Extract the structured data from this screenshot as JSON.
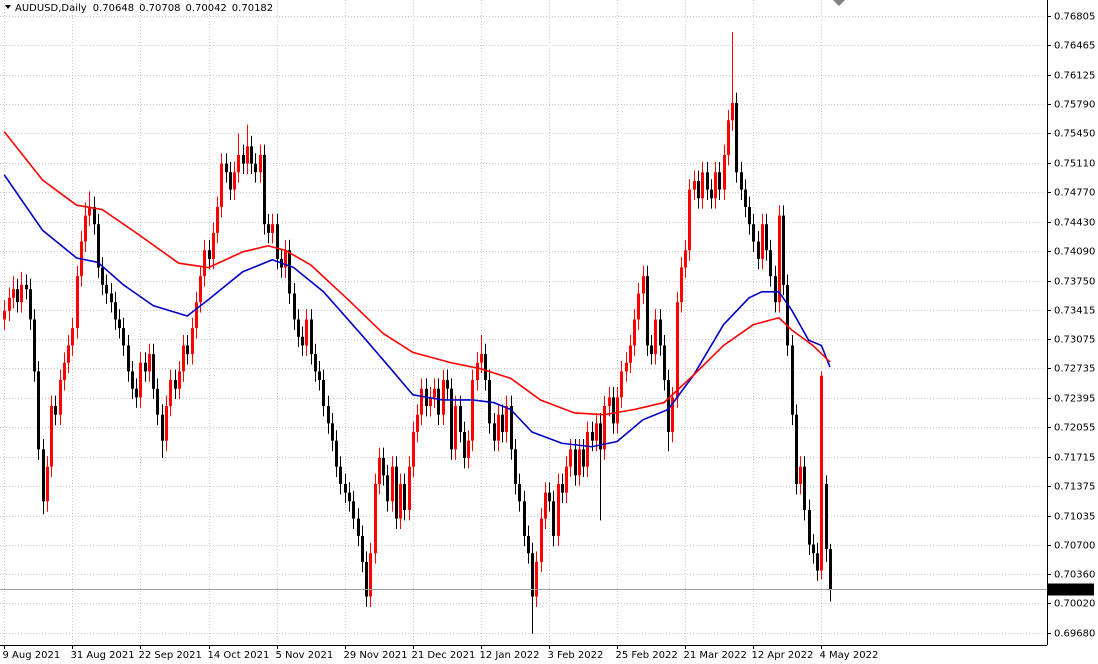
{
  "chart_data": {
    "type": "candlestick",
    "title": "AUDUSD,Daily",
    "up_color": "#ff0000",
    "down_color": "#000000",
    "grid": true,
    "xlim": [
      -1,
      245
    ],
    "ylim": [
      0.6954,
      0.7699
    ],
    "xticks": [
      {
        "value": 0,
        "label": "9 Aug 2021"
      },
      {
        "value": 16,
        "label": "31 Aug 2021"
      },
      {
        "value": 32,
        "label": "22 Sep 2021"
      },
      {
        "value": 48,
        "label": "14 Oct 2021"
      },
      {
        "value": 64,
        "label": "5 Nov 2021"
      },
      {
        "value": 80,
        "label": "29 Nov 2021"
      },
      {
        "value": 96,
        "label": "21 Dec 2021"
      },
      {
        "value": 112,
        "label": "12 Jan 2022"
      },
      {
        "value": 128,
        "label": "3 Feb 2022"
      },
      {
        "value": 144,
        "label": "25 Feb 2022"
      },
      {
        "value": 160,
        "label": "21 Mar 2022"
      },
      {
        "value": 176,
        "label": "12 Apr 2022"
      },
      {
        "value": 192,
        "label": "4 May 2022"
      }
    ],
    "yticks": [
      0.76805,
      0.76465,
      0.76125,
      {
        "value": 0.7579,
        "label": "0.75790"
      },
      {
        "value": 0.7545,
        "label": "0.75450"
      },
      {
        "value": 0.7511,
        "label": "0.75110"
      },
      {
        "value": 0.7477,
        "label": "0.74770"
      },
      {
        "value": 0.7443,
        "label": "0.74430"
      },
      {
        "value": 0.7409,
        "label": "0.74090"
      },
      {
        "value": 0.7375,
        "label": "0.73750"
      },
      0.73415,
      0.73075,
      0.72735,
      0.72395,
      0.72055,
      0.71715,
      0.71375,
      0.71035,
      {
        "value": 0.707,
        "label": "0.70700"
      },
      {
        "value": 0.7036,
        "label": "0.70360"
      },
      {
        "value": 0.7002,
        "label": "0.70020"
      },
      {
        "value": 0.6968,
        "label": "0.69680"
      }
    ],
    "candles": [
      [
        0.733,
        0.7352,
        0.7318,
        0.734
      ],
      [
        0.734,
        0.7367,
        0.7328,
        0.7355
      ],
      [
        0.7355,
        0.738,
        0.7343,
        0.7365
      ],
      [
        0.7365,
        0.7377,
        0.7338,
        0.735
      ],
      [
        0.735,
        0.7385,
        0.7338,
        0.737
      ],
      [
        0.737,
        0.7382,
        0.7353,
        0.7365
      ],
      [
        0.7365,
        0.7377,
        0.7318,
        0.733
      ],
      [
        0.733,
        0.7342,
        0.7258,
        0.727
      ],
      [
        0.727,
        0.7282,
        0.7168,
        0.718
      ],
      [
        0.718,
        0.7192,
        0.7105,
        0.712
      ],
      [
        0.712,
        0.7172,
        0.7108,
        0.716
      ],
      [
        0.716,
        0.7242,
        0.7148,
        0.723
      ],
      [
        0.723,
        0.7242,
        0.7208,
        0.722
      ],
      [
        0.722,
        0.7272,
        0.7208,
        0.726
      ],
      [
        0.726,
        0.7292,
        0.7248,
        0.728
      ],
      [
        0.728,
        0.7312,
        0.7268,
        0.73
      ],
      [
        0.73,
        0.7332,
        0.7288,
        0.732
      ],
      [
        0.732,
        0.7392,
        0.7308,
        0.738
      ],
      [
        0.738,
        0.7432,
        0.7368,
        0.742
      ],
      [
        0.742,
        0.7465,
        0.7408,
        0.745
      ],
      [
        0.745,
        0.7478,
        0.7438,
        0.746
      ],
      [
        0.746,
        0.7472,
        0.7428,
        0.744
      ],
      [
        0.744,
        0.7452,
        0.7378,
        0.739
      ],
      [
        0.739,
        0.7402,
        0.7358,
        0.737
      ],
      [
        0.737,
        0.7382,
        0.7348,
        0.736
      ],
      [
        0.736,
        0.7372,
        0.7338,
        0.735
      ],
      [
        0.735,
        0.7362,
        0.7318,
        0.733
      ],
      [
        0.733,
        0.7342,
        0.7308,
        0.732
      ],
      [
        0.732,
        0.7332,
        0.7288,
        0.73
      ],
      [
        0.73,
        0.7312,
        0.7258,
        0.727
      ],
      [
        0.727,
        0.7282,
        0.7238,
        0.725
      ],
      [
        0.725,
        0.7262,
        0.7228,
        0.724
      ],
      [
        0.724,
        0.7292,
        0.7228,
        0.728
      ],
      [
        0.728,
        0.7292,
        0.7258,
        0.727
      ],
      [
        0.727,
        0.7302,
        0.7258,
        0.729
      ],
      [
        0.729,
        0.7302,
        0.7238,
        0.725
      ],
      [
        0.725,
        0.7262,
        0.7208,
        0.722
      ],
      [
        0.722,
        0.7232,
        0.717,
        0.719
      ],
      [
        0.719,
        0.7242,
        0.7178,
        0.723
      ],
      [
        0.723,
        0.7272,
        0.7218,
        0.726
      ],
      [
        0.726,
        0.7272,
        0.7238,
        0.725
      ],
      [
        0.725,
        0.7282,
        0.7238,
        0.727
      ],
      [
        0.727,
        0.7312,
        0.7258,
        0.73
      ],
      [
        0.73,
        0.7312,
        0.7278,
        0.729
      ],
      [
        0.729,
        0.7332,
        0.7278,
        0.732
      ],
      [
        0.732,
        0.7362,
        0.7308,
        0.735
      ],
      [
        0.735,
        0.7392,
        0.7338,
        0.738
      ],
      [
        0.738,
        0.7422,
        0.7368,
        0.741
      ],
      [
        0.741,
        0.7422,
        0.7388,
        0.74
      ],
      [
        0.74,
        0.7442,
        0.7388,
        0.743
      ],
      [
        0.743,
        0.7472,
        0.7418,
        0.746
      ],
      [
        0.746,
        0.7522,
        0.7448,
        0.751
      ],
      [
        0.751,
        0.7522,
        0.7488,
        0.75
      ],
      [
        0.75,
        0.7512,
        0.7468,
        0.748
      ],
      [
        0.748,
        0.7512,
        0.7468,
        0.75
      ],
      [
        0.75,
        0.7545,
        0.7488,
        0.752
      ],
      [
        0.752,
        0.7532,
        0.7498,
        0.751
      ],
      [
        0.751,
        0.7555,
        0.7498,
        0.753
      ],
      [
        0.753,
        0.7542,
        0.7498,
        0.751
      ],
      [
        0.751,
        0.7522,
        0.7488,
        0.75
      ],
      [
        0.75,
        0.7532,
        0.7488,
        0.752
      ],
      [
        0.752,
        0.7532,
        0.7428,
        0.744
      ],
      [
        0.744,
        0.7452,
        0.7418,
        0.743
      ],
      [
        0.743,
        0.7452,
        0.7418,
        0.744
      ],
      [
        0.744,
        0.7452,
        0.7388,
        0.74
      ],
      [
        0.74,
        0.7412,
        0.7378,
        0.739
      ],
      [
        0.739,
        0.7422,
        0.7378,
        0.741
      ],
      [
        0.741,
        0.7422,
        0.7348,
        0.736
      ],
      [
        0.736,
        0.7372,
        0.7318,
        0.733
      ],
      [
        0.733,
        0.7342,
        0.7298,
        0.731
      ],
      [
        0.731,
        0.7322,
        0.7288,
        0.73
      ],
      [
        0.73,
        0.7342,
        0.7288,
        0.733
      ],
      [
        0.733,
        0.7342,
        0.7278,
        0.729
      ],
      [
        0.729,
        0.7302,
        0.7258,
        0.727
      ],
      [
        0.727,
        0.7282,
        0.7248,
        0.726
      ],
      [
        0.726,
        0.7272,
        0.7218,
        0.723
      ],
      [
        0.723,
        0.7242,
        0.7198,
        0.721
      ],
      [
        0.721,
        0.7222,
        0.7178,
        0.719
      ],
      [
        0.719,
        0.7202,
        0.7148,
        0.716
      ],
      [
        0.716,
        0.7172,
        0.7128,
        0.714
      ],
      [
        0.714,
        0.7152,
        0.7118,
        0.713
      ],
      [
        0.713,
        0.7142,
        0.7108,
        0.712
      ],
      [
        0.712,
        0.7132,
        0.7088,
        0.71
      ],
      [
        0.71,
        0.7112,
        0.7068,
        0.708
      ],
      [
        0.708,
        0.7092,
        0.7038,
        0.705
      ],
      [
        0.705,
        0.7062,
        0.6998,
        0.701
      ],
      [
        0.701,
        0.7072,
        0.6998,
        0.706
      ],
      [
        0.706,
        0.7152,
        0.7048,
        0.714
      ],
      [
        0.714,
        0.7182,
        0.7128,
        0.717
      ],
      [
        0.717,
        0.7182,
        0.7138,
        0.715
      ],
      [
        0.715,
        0.7162,
        0.7108,
        0.712
      ],
      [
        0.712,
        0.7172,
        0.7108,
        0.716
      ],
      [
        0.716,
        0.7172,
        0.7088,
        0.71
      ],
      [
        0.71,
        0.7152,
        0.7088,
        0.714
      ],
      [
        0.714,
        0.7152,
        0.7098,
        0.711
      ],
      [
        0.711,
        0.7172,
        0.7098,
        0.716
      ],
      [
        0.716,
        0.7212,
        0.7148,
        0.72
      ],
      [
        0.72,
        0.7232,
        0.7188,
        0.722
      ],
      [
        0.722,
        0.7262,
        0.7208,
        0.725
      ],
      [
        0.725,
        0.7262,
        0.7218,
        0.723
      ],
      [
        0.723,
        0.7252,
        0.7218,
        0.724
      ],
      [
        0.724,
        0.7262,
        0.7228,
        0.725
      ],
      [
        0.725,
        0.7262,
        0.7208,
        0.722
      ],
      [
        0.722,
        0.7272,
        0.7208,
        0.726
      ],
      [
        0.726,
        0.7272,
        0.7238,
        0.725
      ],
      [
        0.725,
        0.7262,
        0.7168,
        0.718
      ],
      [
        0.718,
        0.7242,
        0.7168,
        0.723
      ],
      [
        0.723,
        0.7242,
        0.7188,
        0.72
      ],
      [
        0.72,
        0.7212,
        0.7158,
        0.717
      ],
      [
        0.717,
        0.7202,
        0.7158,
        0.719
      ],
      [
        0.719,
        0.7272,
        0.7178,
        0.726
      ],
      [
        0.726,
        0.7292,
        0.7248,
        0.728
      ],
      [
        0.728,
        0.7312,
        0.7268,
        0.729
      ],
      [
        0.729,
        0.7302,
        0.7248,
        0.726
      ],
      [
        0.726,
        0.7272,
        0.7198,
        0.721
      ],
      [
        0.721,
        0.7222,
        0.7178,
        0.719
      ],
      [
        0.719,
        0.7232,
        0.7178,
        0.722
      ],
      [
        0.722,
        0.7232,
        0.7188,
        0.72
      ],
      [
        0.72,
        0.7242,
        0.7188,
        0.723
      ],
      [
        0.723,
        0.7242,
        0.7168,
        0.718
      ],
      [
        0.718,
        0.7192,
        0.7128,
        0.714
      ],
      [
        0.714,
        0.7152,
        0.7108,
        0.712
      ],
      [
        0.712,
        0.7132,
        0.7068,
        0.708
      ],
      [
        0.708,
        0.7092,
        0.7048,
        0.706
      ],
      [
        0.706,
        0.7072,
        0.6967,
        0.701
      ],
      [
        0.701,
        0.7062,
        0.6998,
        0.705
      ],
      [
        0.705,
        0.7112,
        0.7038,
        0.71
      ],
      [
        0.71,
        0.7142,
        0.7088,
        0.713
      ],
      [
        0.713,
        0.7142,
        0.7108,
        0.712
      ],
      [
        0.712,
        0.7132,
        0.7068,
        0.708
      ],
      [
        0.708,
        0.7152,
        0.7068,
        0.714
      ],
      [
        0.714,
        0.7152,
        0.7118,
        0.713
      ],
      [
        0.713,
        0.7172,
        0.7118,
        0.716
      ],
      [
        0.716,
        0.7192,
        0.7148,
        0.718
      ],
      [
        0.718,
        0.7192,
        0.7138,
        0.715
      ],
      [
        0.715,
        0.7192,
        0.7138,
        0.718
      ],
      [
        0.718,
        0.7192,
        0.7148,
        0.716
      ],
      [
        0.716,
        0.7212,
        0.7148,
        0.72
      ],
      [
        0.72,
        0.7212,
        0.7178,
        0.719
      ],
      [
        0.719,
        0.7222,
        0.7178,
        0.721
      ],
      [
        0.721,
        0.7222,
        0.7098,
        0.718
      ],
      [
        0.718,
        0.7242,
        0.7168,
        0.723
      ],
      [
        0.723,
        0.7252,
        0.7218,
        0.724
      ],
      [
        0.724,
        0.7252,
        0.7198,
        0.721
      ],
      [
        0.721,
        0.7252,
        0.7198,
        0.724
      ],
      [
        0.724,
        0.7282,
        0.7228,
        0.727
      ],
      [
        0.727,
        0.7292,
        0.7258,
        0.728
      ],
      [
        0.728,
        0.7312,
        0.7268,
        0.73
      ],
      [
        0.73,
        0.7342,
        0.7288,
        0.733
      ],
      [
        0.733,
        0.7372,
        0.7318,
        0.736
      ],
      [
        0.736,
        0.7392,
        0.7348,
        0.738
      ],
      [
        0.738,
        0.7392,
        0.7288,
        0.73
      ],
      [
        0.73,
        0.7312,
        0.7278,
        0.729
      ],
      [
        0.729,
        0.7342,
        0.7278,
        0.733
      ],
      [
        0.733,
        0.7342,
        0.7288,
        0.73
      ],
      [
        0.73,
        0.7312,
        0.7248,
        0.726
      ],
      [
        0.726,
        0.7272,
        0.7178,
        0.72
      ],
      [
        0.72,
        0.7252,
        0.7188,
        0.724
      ],
      [
        0.724,
        0.7362,
        0.7228,
        0.735
      ],
      [
        0.735,
        0.7402,
        0.7338,
        0.739
      ],
      [
        0.739,
        0.7422,
        0.7378,
        0.741
      ],
      [
        0.741,
        0.7492,
        0.7398,
        0.748
      ],
      [
        0.748,
        0.7502,
        0.7468,
        0.749
      ],
      [
        0.749,
        0.7502,
        0.7458,
        0.747
      ],
      [
        0.747,
        0.7512,
        0.7458,
        0.75
      ],
      [
        0.75,
        0.7512,
        0.7468,
        0.748
      ],
      [
        0.748,
        0.7492,
        0.7458,
        0.747
      ],
      [
        0.747,
        0.7512,
        0.7458,
        0.75
      ],
      [
        0.75,
        0.7512,
        0.7468,
        0.748
      ],
      [
        0.748,
        0.7532,
        0.7468,
        0.752
      ],
      [
        0.752,
        0.7572,
        0.7508,
        0.756
      ],
      [
        0.756,
        0.7662,
        0.7548,
        0.758
      ],
      [
        0.758,
        0.7592,
        0.7488,
        0.75
      ],
      [
        0.75,
        0.7512,
        0.7468,
        0.748
      ],
      [
        0.748,
        0.7492,
        0.7448,
        0.746
      ],
      [
        0.746,
        0.7472,
        0.7428,
        0.744
      ],
      [
        0.744,
        0.7452,
        0.7408,
        0.742
      ],
      [
        0.742,
        0.7432,
        0.7388,
        0.74
      ],
      [
        0.74,
        0.7452,
        0.7388,
        0.744
      ],
      [
        0.744,
        0.7452,
        0.7398,
        0.741
      ],
      [
        0.741,
        0.7422,
        0.7368,
        0.738
      ],
      [
        0.738,
        0.7392,
        0.7338,
        0.735
      ],
      [
        0.735,
        0.7462,
        0.7338,
        0.745
      ],
      [
        0.745,
        0.7462,
        0.7358,
        0.737
      ],
      [
        0.737,
        0.7382,
        0.7288,
        0.73
      ],
      [
        0.73,
        0.7312,
        0.7208,
        0.722
      ],
      [
        0.722,
        0.7232,
        0.7128,
        0.714
      ],
      [
        0.714,
        0.7172,
        0.7128,
        0.716
      ],
      [
        0.716,
        0.7172,
        0.7098,
        0.711
      ],
      [
        0.711,
        0.7122,
        0.7058,
        0.707
      ],
      [
        0.707,
        0.7082,
        0.7048,
        0.706
      ],
      [
        0.706,
        0.7072,
        0.7028,
        0.704
      ],
      [
        0.704,
        0.727,
        0.703,
        0.7265
      ],
      [
        0.714,
        0.715,
        0.705,
        0.7065
      ],
      [
        0.70648,
        0.70708,
        0.70042,
        0.70182
      ]
    ],
    "lines": [
      {
        "color": "#0000c8",
        "x": [
          0,
          9,
          17,
          22,
          28,
          35,
          43,
          48,
          56,
          63,
          68,
          75,
          84,
          91,
          96,
          103,
          110,
          115,
          119,
          124,
          131,
          138,
          144,
          150,
          156,
          162,
          169,
          175,
          178,
          182,
          185,
          189,
          192,
          194
        ],
        "values": [
          0.7497,
          0.7433,
          0.7401,
          0.7396,
          0.737,
          0.7346,
          0.7334,
          0.7353,
          0.7385,
          0.7399,
          0.739,
          0.7362,
          0.7312,
          0.7272,
          0.7243,
          0.7237,
          0.7237,
          0.7234,
          0.7226,
          0.72,
          0.7187,
          0.7183,
          0.7189,
          0.7214,
          0.7226,
          0.7266,
          0.7324,
          0.7355,
          0.7362,
          0.7362,
          0.7341,
          0.7306,
          0.73,
          0.7275
        ]
      },
      {
        "color": "#ff0000",
        "x": [
          0,
          9,
          17,
          23,
          31,
          41,
          48,
          56,
          62,
          66,
          72,
          81,
          89,
          96,
          105,
          112,
          119,
          126,
          134,
          141,
          148,
          155,
          162,
          169,
          176,
          182,
          185,
          190,
          194
        ],
        "values": [
          0.7547,
          0.7491,
          0.7462,
          0.7457,
          0.743,
          0.7395,
          0.739,
          0.7408,
          0.7415,
          0.741,
          0.7393,
          0.7352,
          0.7314,
          0.7292,
          0.728,
          0.7273,
          0.7262,
          0.7237,
          0.7222,
          0.722,
          0.7226,
          0.7234,
          0.7266,
          0.73,
          0.7324,
          0.7332,
          0.7318,
          0.73,
          0.7281
        ]
      }
    ]
  }
}
